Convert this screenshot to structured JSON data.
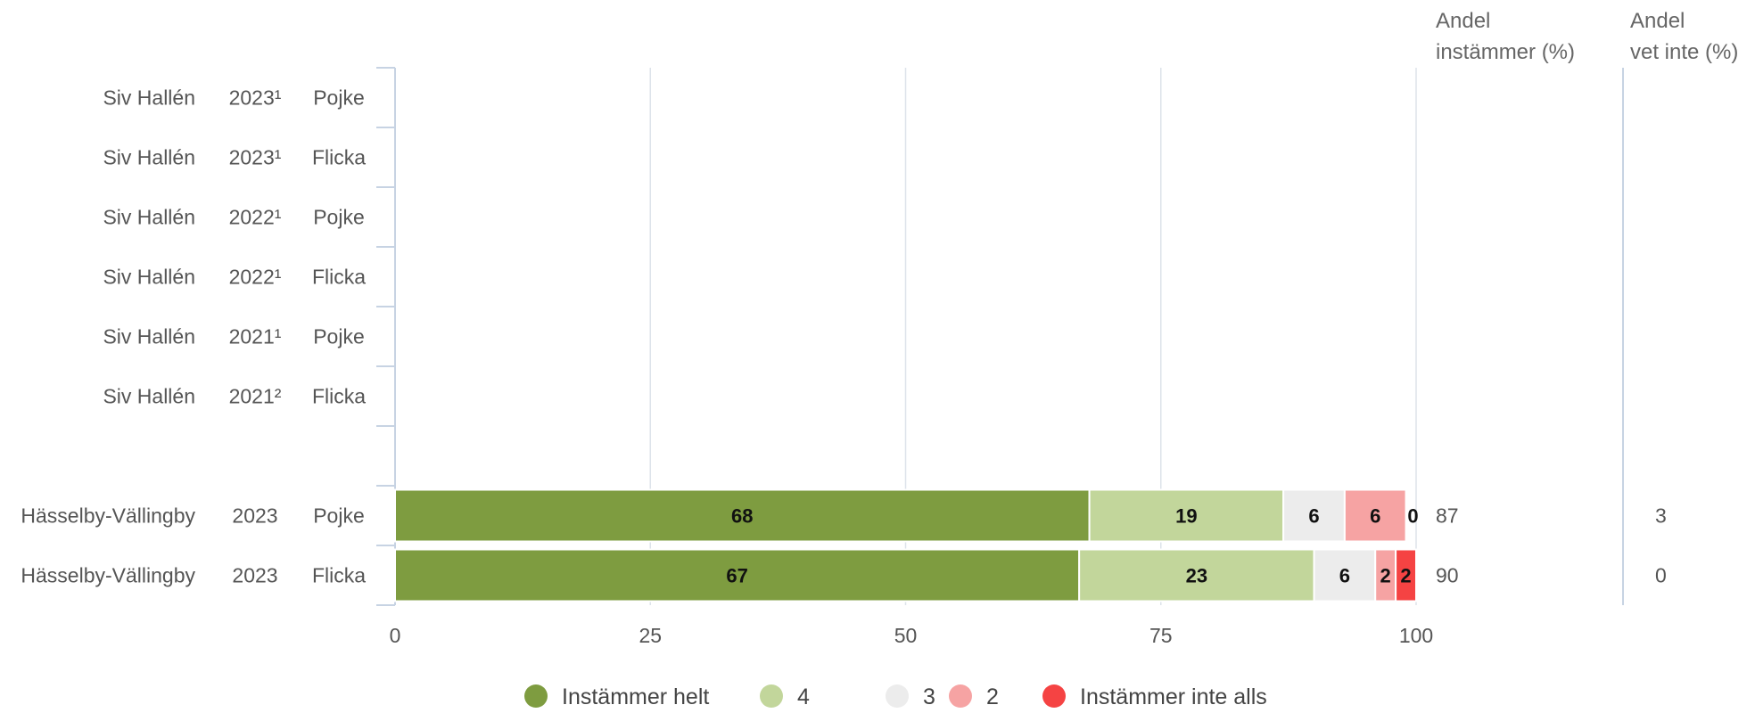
{
  "chart_data": {
    "type": "bar",
    "stacked": true,
    "orientation": "horizontal",
    "columns": {
      "share_agree": "Andel instämmer (%)",
      "share_dont_know": "Andel vet inte (%)"
    },
    "rows": [
      {
        "name": "Siv Hallén",
        "year": "2023¹",
        "group": "Pojke",
        "values": null,
        "share_agree": "",
        "share_dont_know": ""
      },
      {
        "name": "Siv Hallén",
        "year": "2023¹",
        "group": "Flicka",
        "values": null,
        "share_agree": "",
        "share_dont_know": ""
      },
      {
        "name": "Siv Hallén",
        "year": "2022¹",
        "group": "Pojke",
        "values": null,
        "share_agree": "",
        "share_dont_know": ""
      },
      {
        "name": "Siv Hallén",
        "year": "2022¹",
        "group": "Flicka",
        "values": null,
        "share_agree": "",
        "share_dont_know": ""
      },
      {
        "name": "Siv Hallén",
        "year": "2021¹",
        "group": "Pojke",
        "values": null,
        "share_agree": "",
        "share_dont_know": ""
      },
      {
        "name": "Siv Hallén",
        "year": "2021²",
        "group": "Flicka",
        "values": null,
        "share_agree": "",
        "share_dont_know": ""
      },
      {
        "spacer": true
      },
      {
        "name": "Hässelby-Vällingby",
        "year": "2023",
        "group": "Pojke",
        "values": [
          68,
          19,
          6,
          6,
          0
        ],
        "share_agree": "87",
        "share_dont_know": "3"
      },
      {
        "name": "Hässelby-Vällingby",
        "year": "2023",
        "group": "Flicka",
        "values": [
          67,
          23,
          6,
          2,
          2
        ],
        "share_agree": "90",
        "share_dont_know": "0"
      }
    ],
    "series": [
      {
        "name": "Instämmer helt",
        "color": "#7e9c40"
      },
      {
        "name": "4",
        "color": "#c2d69b"
      },
      {
        "name": "3",
        "color": "#ececec"
      },
      {
        "name": "2",
        "color": "#f6a3a3"
      },
      {
        "name": "Instämmer inte alls",
        "color": "#f54343"
      }
    ],
    "xlim": [
      0,
      100
    ],
    "xticks": [
      0,
      25,
      50,
      75,
      100
    ],
    "grid": true,
    "legend_position": "bottom"
  }
}
